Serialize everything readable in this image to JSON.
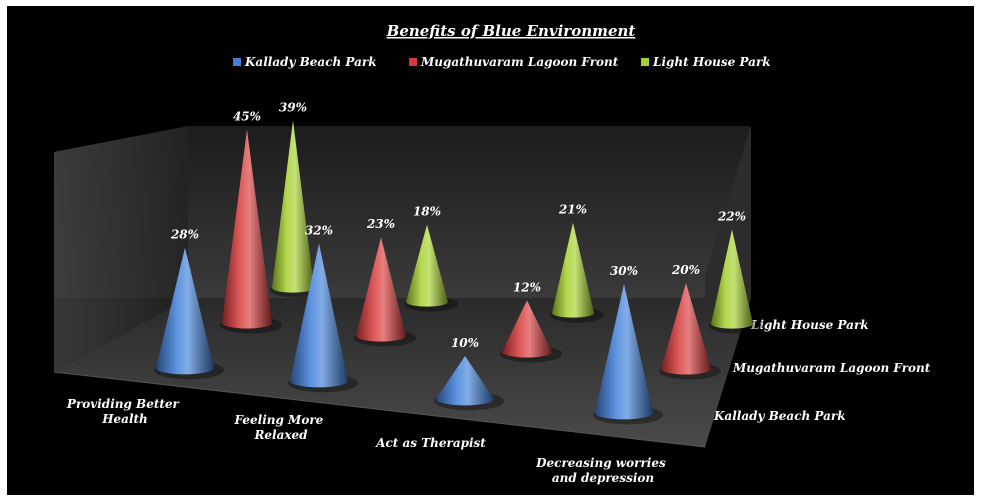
{
  "chart_data": {
    "type": "bar",
    "shape": "3d-cone",
    "title": "Benefits of Blue Environment",
    "categories": [
      "Providing Better Health",
      "Feeling More Relaxed",
      "Act as Therapist",
      "Decreasing worries and depression"
    ],
    "category_lines": [
      [
        "Providing Better",
        "Health"
      ],
      [
        "Feeling More",
        "Relaxed"
      ],
      [
        "Act as Therapist"
      ],
      [
        "Decreasing worries",
        "and depression"
      ]
    ],
    "series": [
      {
        "name": "Kallady Beach Park",
        "values": [
          28,
          32,
          10,
          30
        ],
        "labels": [
          "28%",
          "32%",
          "10%",
          "30%"
        ],
        "color": "#3f7fd8"
      },
      {
        "name": "Mugathuvaram Lagoon Front",
        "values": [
          45,
          23,
          12,
          20
        ],
        "labels": [
          "45%",
          "23%",
          "12%",
          "20%"
        ],
        "color": "#d83a3a"
      },
      {
        "name": "Light House Park",
        "values": [
          39,
          18,
          21,
          22
        ],
        "labels": [
          "39%",
          "18%",
          "21%",
          "22%"
        ],
        "color": "#a6d12e"
      }
    ],
    "depth_labels": [
      "Light House Park",
      "Mugathuvaram Lagoon Front",
      "Kallady Beach Park"
    ],
    "value_unit": "%",
    "legend": "top",
    "background": "#000000",
    "grid": false
  }
}
